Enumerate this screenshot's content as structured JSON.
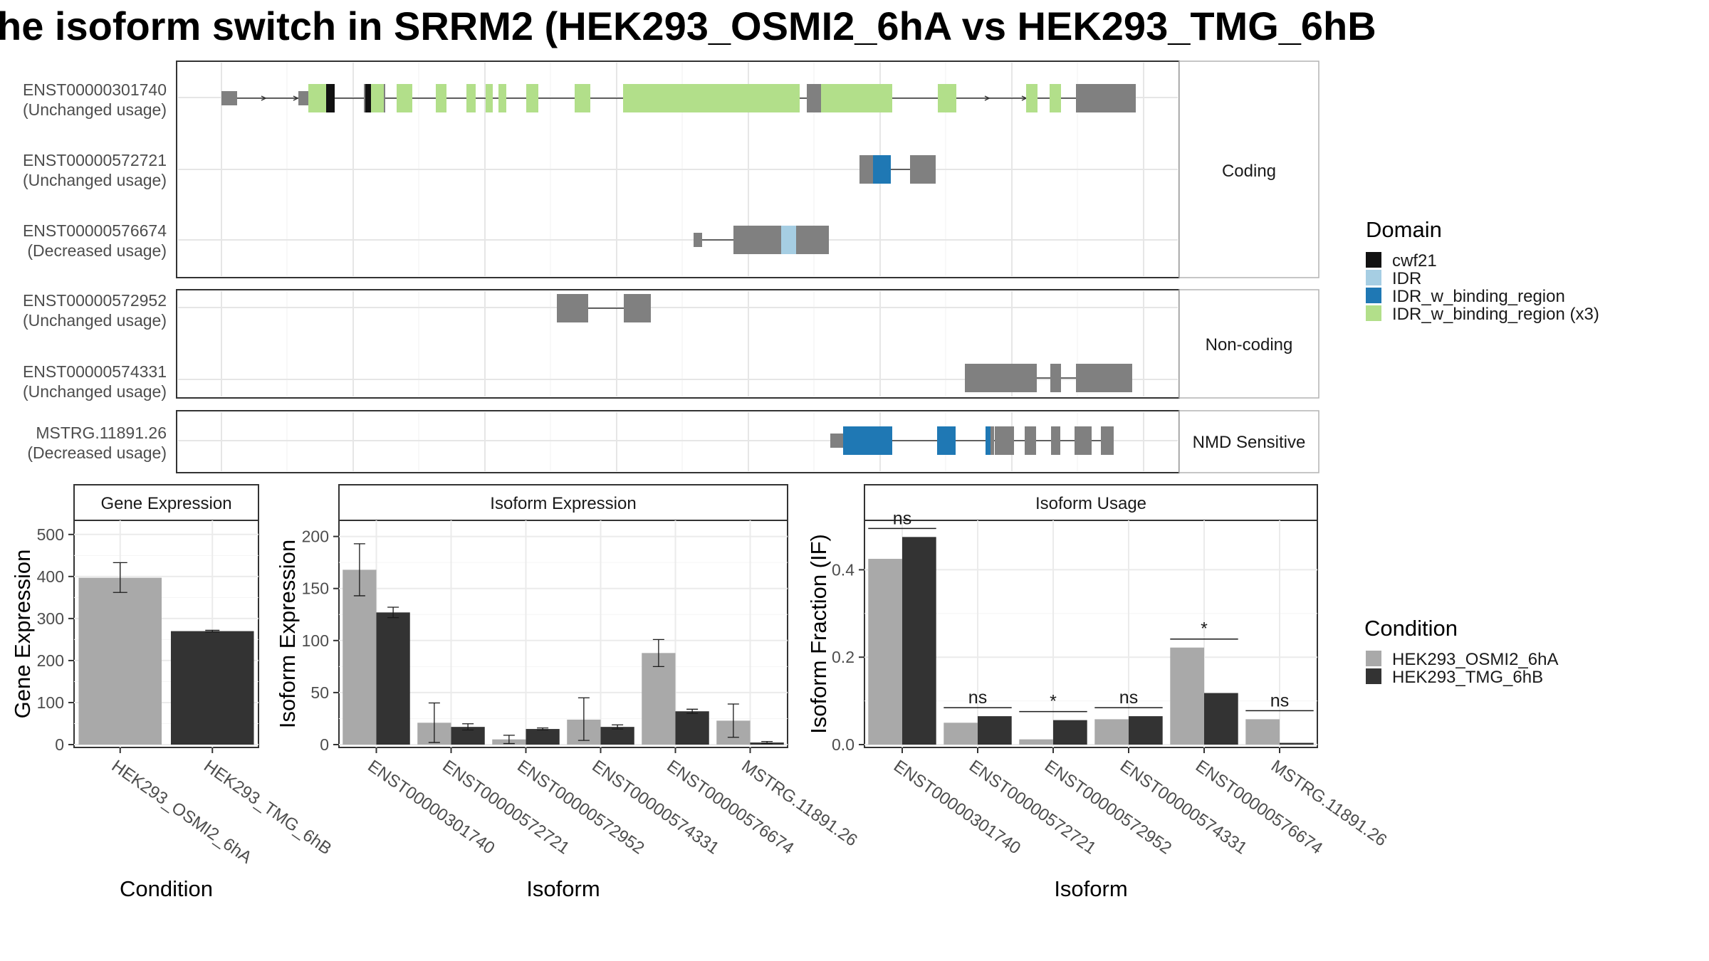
{
  "title": "he isoform switch in SRRM2 (HEK293_OSMI2_6hA vs HEK293_TMG_6hB",
  "colors": {
    "cwf21": "#111111",
    "IDR": "#a6cee3",
    "IDR_w_binding_region": "#1f78b4",
    "IDR_w_binding_region (x3)": "#b2df8a",
    "exon": "#808080",
    "cond_A": "#a9a9a9",
    "cond_B": "#333333"
  },
  "transcript_panels": [
    {
      "strip": "Coding",
      "rows": [
        {
          "id": "ENST00000301740",
          "usage": "(Unchanged usage)"
        },
        {
          "id": "ENST00000572721",
          "usage": "(Unchanged usage)"
        },
        {
          "id": "ENST00000576674",
          "usage": "(Decreased usage)"
        }
      ]
    },
    {
      "strip": "Non-coding",
      "rows": [
        {
          "id": "ENST00000572952",
          "usage": "(Unchanged usage)"
        },
        {
          "id": "ENST00000574331",
          "usage": "(Unchanged usage)"
        }
      ]
    },
    {
      "strip": "NMD Sensitive",
      "rows": [
        {
          "id": "MSTRG.11891.26",
          "usage": "(Decreased usage)"
        }
      ]
    }
  ],
  "legend_domain": {
    "title": "Domain",
    "items": [
      "cwf21",
      "IDR",
      "IDR_w_binding_region",
      "IDR_w_binding_region (x3)"
    ]
  },
  "legend_condition": {
    "title": "Condition",
    "items": [
      "HEK293_OSMI2_6hA",
      "HEK293_TMG_6hB"
    ]
  },
  "chart_data": [
    {
      "type": "bar",
      "title": "Gene Expression",
      "xlabel": "Condition",
      "ylabel": "Gene Expression",
      "categories": [
        "HEK293_OSMI2_6hA",
        "HEK293_TMG_6hB"
      ],
      "series": [
        {
          "name": "Gene Expression",
          "values": [
            397,
            270
          ]
        }
      ],
      "error": [
        [
          362,
          433
        ],
        [
          268,
          272
        ]
      ],
      "ylim": [
        0,
        520
      ],
      "yticks": [
        0,
        100,
        200,
        300,
        400,
        500
      ]
    },
    {
      "type": "bar",
      "title": "Isoform Expression",
      "xlabel": "Isoform",
      "ylabel": "Isoform Expression",
      "categories": [
        "ENST00000301740",
        "ENST00000572721",
        "ENST00000572952",
        "ENST00000574331",
        "ENST00000576674",
        "MSTRG.11891.26"
      ],
      "series": [
        {
          "name": "HEK293_OSMI2_6hA",
          "values": [
            168,
            21,
            5,
            24,
            88,
            23
          ]
        },
        {
          "name": "HEK293_TMG_6hB",
          "values": [
            127,
            17,
            15,
            17,
            32,
            2
          ]
        }
      ],
      "error_A": [
        [
          143,
          193
        ],
        [
          2,
          40
        ],
        [
          1,
          9
        ],
        [
          4,
          45
        ],
        [
          75,
          101
        ],
        [
          7,
          39
        ]
      ],
      "error_B": [
        [
          122,
          132
        ],
        [
          14,
          20
        ],
        [
          14,
          16
        ],
        [
          15,
          19
        ],
        [
          30,
          34
        ],
        [
          1,
          3
        ]
      ],
      "ylim": [
        0,
        210
      ],
      "yticks": [
        0,
        50,
        100,
        150,
        200
      ]
    },
    {
      "type": "bar",
      "title": "Isoform Usage",
      "xlabel": "Isoform",
      "ylabel": "Isoform Fraction (IF)",
      "categories": [
        "ENST00000301740",
        "ENST00000572721",
        "ENST00000572952",
        "ENST00000574331",
        "ENST00000576674",
        "MSTRG.11891.26"
      ],
      "series": [
        {
          "name": "HEK293_OSMI2_6hA",
          "values": [
            0.425,
            0.05,
            0.012,
            0.058,
            0.222,
            0.058
          ]
        },
        {
          "name": "HEK293_TMG_6hB",
          "values": [
            0.475,
            0.065,
            0.056,
            0.065,
            0.118,
            0.004
          ]
        }
      ],
      "significance": [
        "ns",
        "ns",
        "*",
        "ns",
        "*",
        "ns"
      ],
      "ylim": [
        0,
        0.5
      ],
      "yticks": [
        0.0,
        0.2,
        0.4
      ],
      "ytick_labels": [
        "0.0",
        "0.2",
        "0.4"
      ]
    }
  ]
}
